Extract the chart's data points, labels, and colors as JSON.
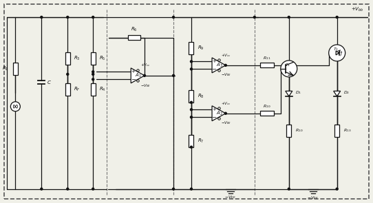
{
  "bg_color": "#f0f0e8",
  "line_color": "#111111",
  "dash_border_color": "#444444",
  "fig_width": 5.42,
  "fig_height": 2.95,
  "dpi": 100
}
